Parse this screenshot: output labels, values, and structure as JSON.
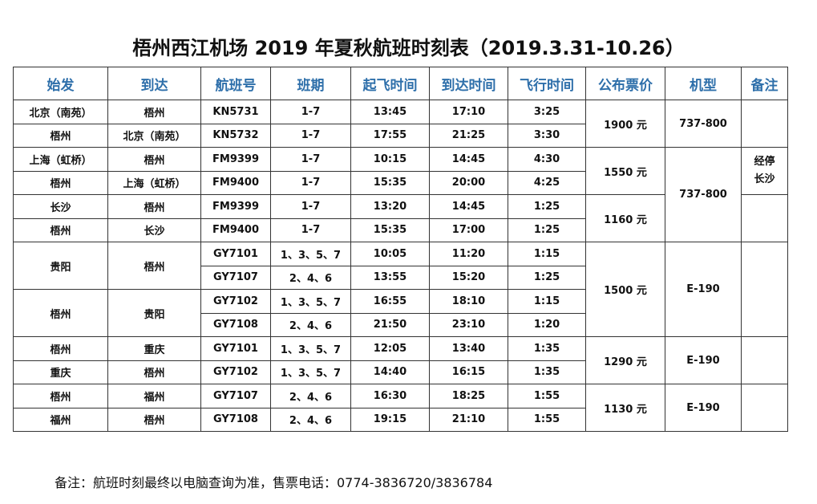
{
  "header": {
    "title": "梧州西江机场 2019 年夏秋航班时刻表（2019.3.31-10.26）"
  },
  "table": {
    "columns": [
      "始发",
      "到达",
      "航班号",
      "班期",
      "起飞时间",
      "到达时间",
      "飞行时间",
      "公布票价",
      "机型",
      "备注"
    ],
    "rows": [
      [
        "北京（南苑）",
        "梧州",
        "KN5731",
        "1-7",
        "13:45",
        "17:10",
        "3:25",
        "1900 元",
        "737-800"
      ],
      [
        "梧州",
        "北京（南苑）",
        "KN5732",
        "1-7",
        "17:55",
        "21:25",
        "3:30"
      ],
      [
        "上海（虹桥）",
        "梧州",
        "FM9399",
        "1-7",
        "10:15",
        "14:45",
        "4:30",
        "1550 元",
        "737-800",
        "经停长沙"
      ],
      [
        "梧州",
        "上海（虹桥）",
        "FM9400",
        "1-7",
        "15:35",
        "20:00",
        "4:25"
      ],
      [
        "长沙",
        "梧州",
        "FM9399",
        "1-7",
        "13:20",
        "14:45",
        "1:25",
        "1160 元"
      ],
      [
        "梧州",
        "长沙",
        "FM9400",
        "1-7",
        "15:35",
        "17:00",
        "1:25"
      ],
      [
        "贵阳",
        "梧州",
        "GY7101",
        "1、3、5、7",
        "10:05",
        "11:20",
        "1:15",
        "1500 元",
        "E-190"
      ],
      [
        "GY7107",
        "2、4、6",
        "13:55",
        "15:20",
        "1:25"
      ],
      [
        "梧州",
        "贵阳",
        "GY7102",
        "1、3、5、7",
        "16:55",
        "18:10",
        "1:15"
      ],
      [
        "GY7108",
        "2、4、6",
        "21:50",
        "23:10",
        "1:20"
      ],
      [
        "梧州",
        "重庆",
        "GY7101",
        "1、3、5、7",
        "12:05",
        "13:40",
        "1:35",
        "1290 元",
        "E-190"
      ],
      [
        "重庆",
        "梧州",
        "GY7102",
        "1、3、5、7",
        "14:40",
        "16:15",
        "1:35"
      ],
      [
        "梧州",
        "福州",
        "GY7107",
        "2、4、6",
        "16:30",
        "18:25",
        "1:55",
        "1130 元",
        "E-190"
      ],
      [
        "福州",
        "梧州",
        "GY7108",
        "2、4、6",
        "19:15",
        "21:10",
        "1:55"
      ]
    ]
  },
  "footer": {
    "note": "备注：航班时刻最终以电脑查询为准，售票电话：0774-3836720/3836784"
  }
}
